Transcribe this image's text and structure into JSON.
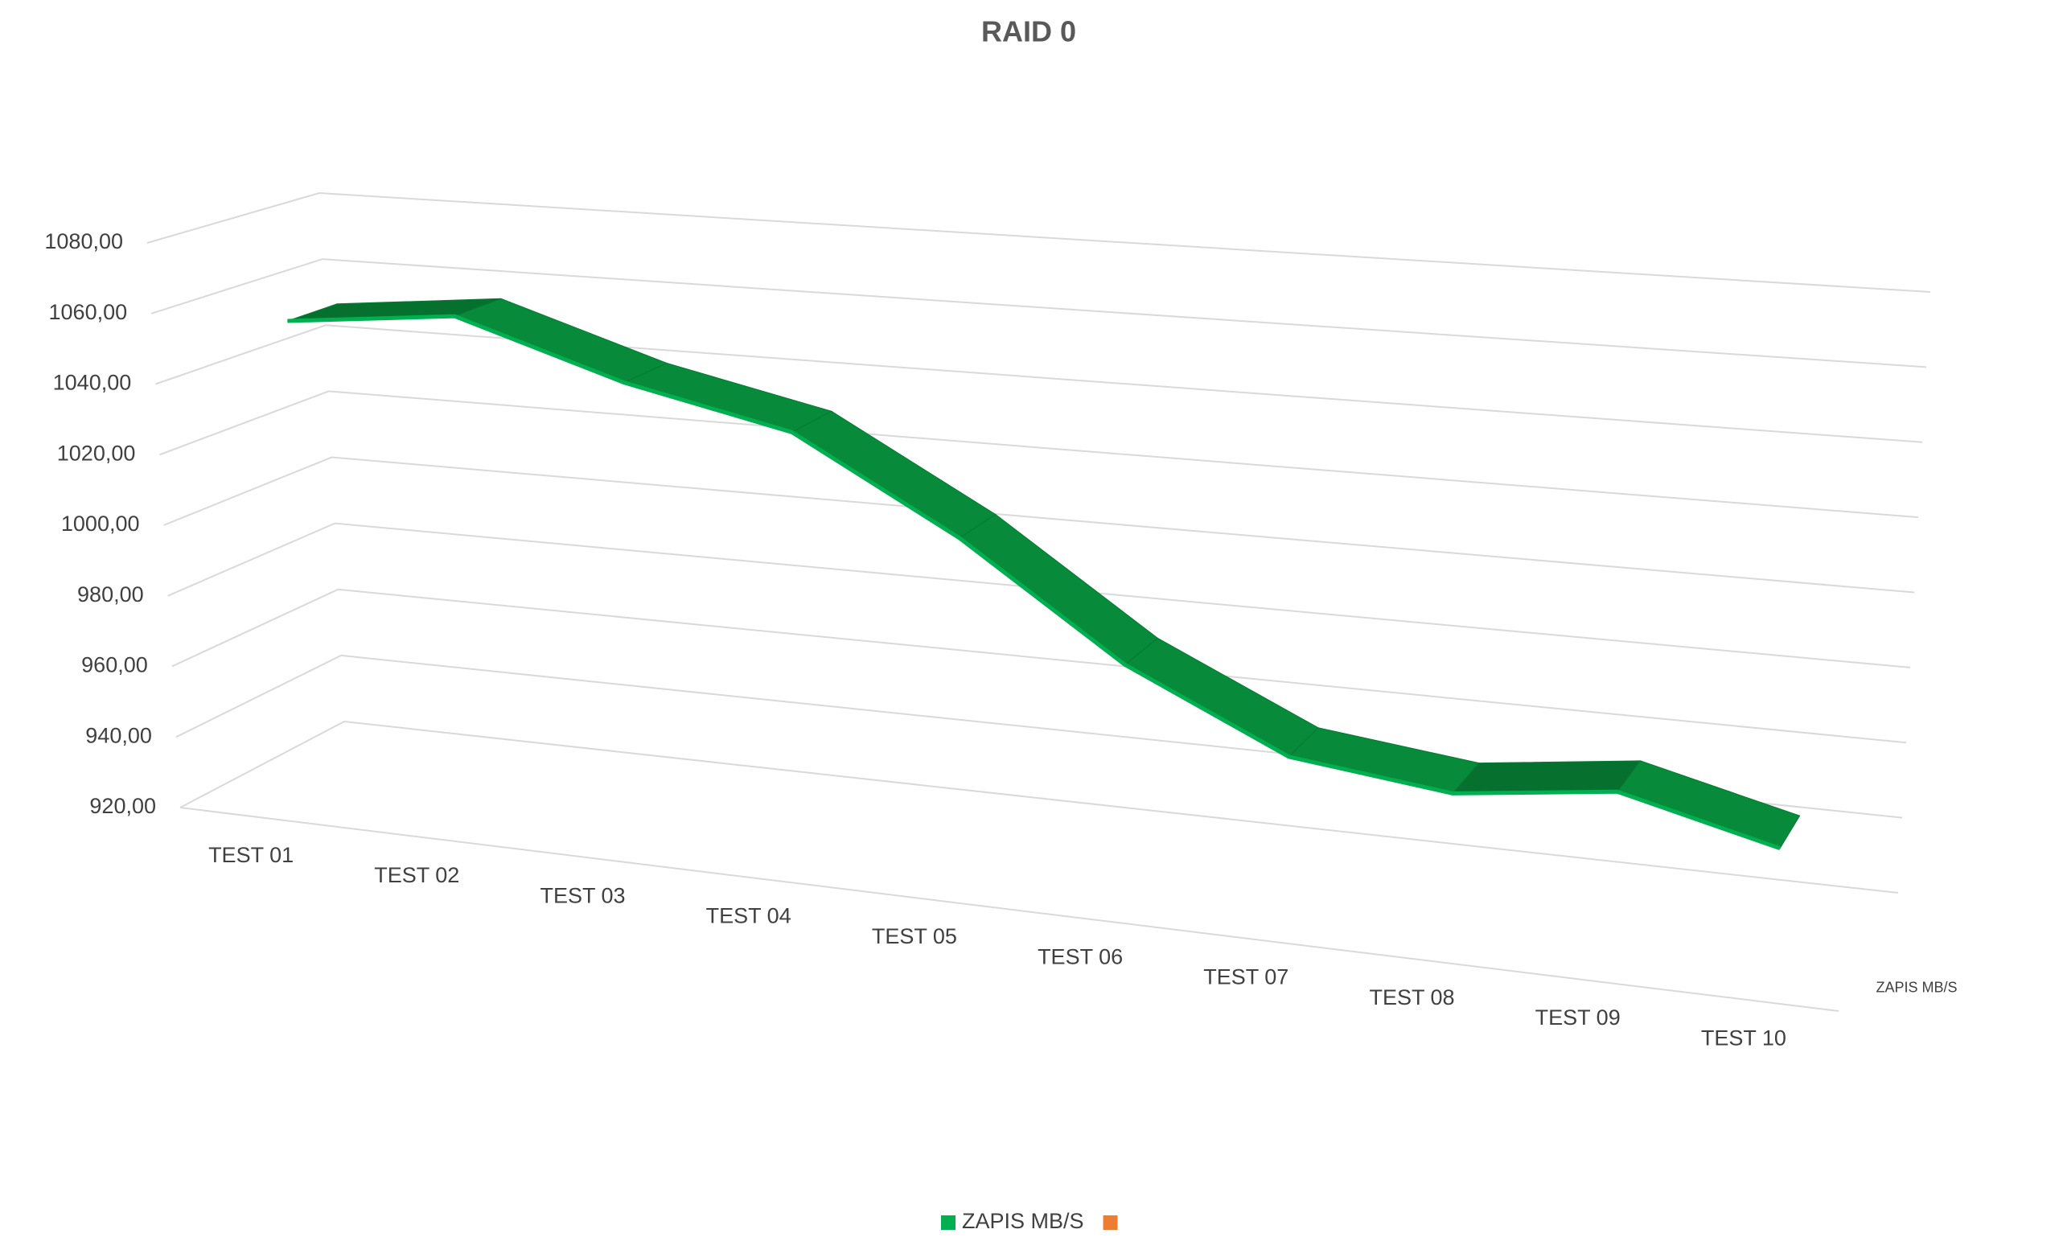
{
  "chart_data": {
    "type": "line3d",
    "title": "RAID 0",
    "categories": [
      "TEST 01",
      "TEST 02",
      "TEST 03",
      "TEST 04",
      "TEST 05",
      "TEST 06",
      "TEST 07",
      "TEST 08",
      "TEST 09",
      "TEST 10"
    ],
    "series": [
      {
        "name": "ZAPIS MB/S",
        "color": "#00b050",
        "values": [
          1055,
          1060,
          1045,
          1035,
          1010,
          980,
          960,
          955,
          960,
          950
        ]
      },
      {
        "name": null,
        "color": "#ed7d31",
        "values": [
          null,
          null,
          null,
          null,
          null,
          null,
          null,
          null,
          null,
          null
        ]
      }
    ],
    "ylim": [
      920,
      1080
    ],
    "yticks": [
      {
        "value": 920,
        "label": "920,00"
      },
      {
        "value": 940,
        "label": "940,00"
      },
      {
        "value": 960,
        "label": "960,00"
      },
      {
        "value": 980,
        "label": "980,00"
      },
      {
        "value": 1000,
        "label": "1000,00"
      },
      {
        "value": 1020,
        "label": "1020,00"
      },
      {
        "value": 1040,
        "label": "1040,00"
      },
      {
        "value": 1060,
        "label": "1060,00"
      },
      {
        "value": 1080,
        "label": "1080,00"
      }
    ],
    "grid": true,
    "legend": "bottom"
  }
}
